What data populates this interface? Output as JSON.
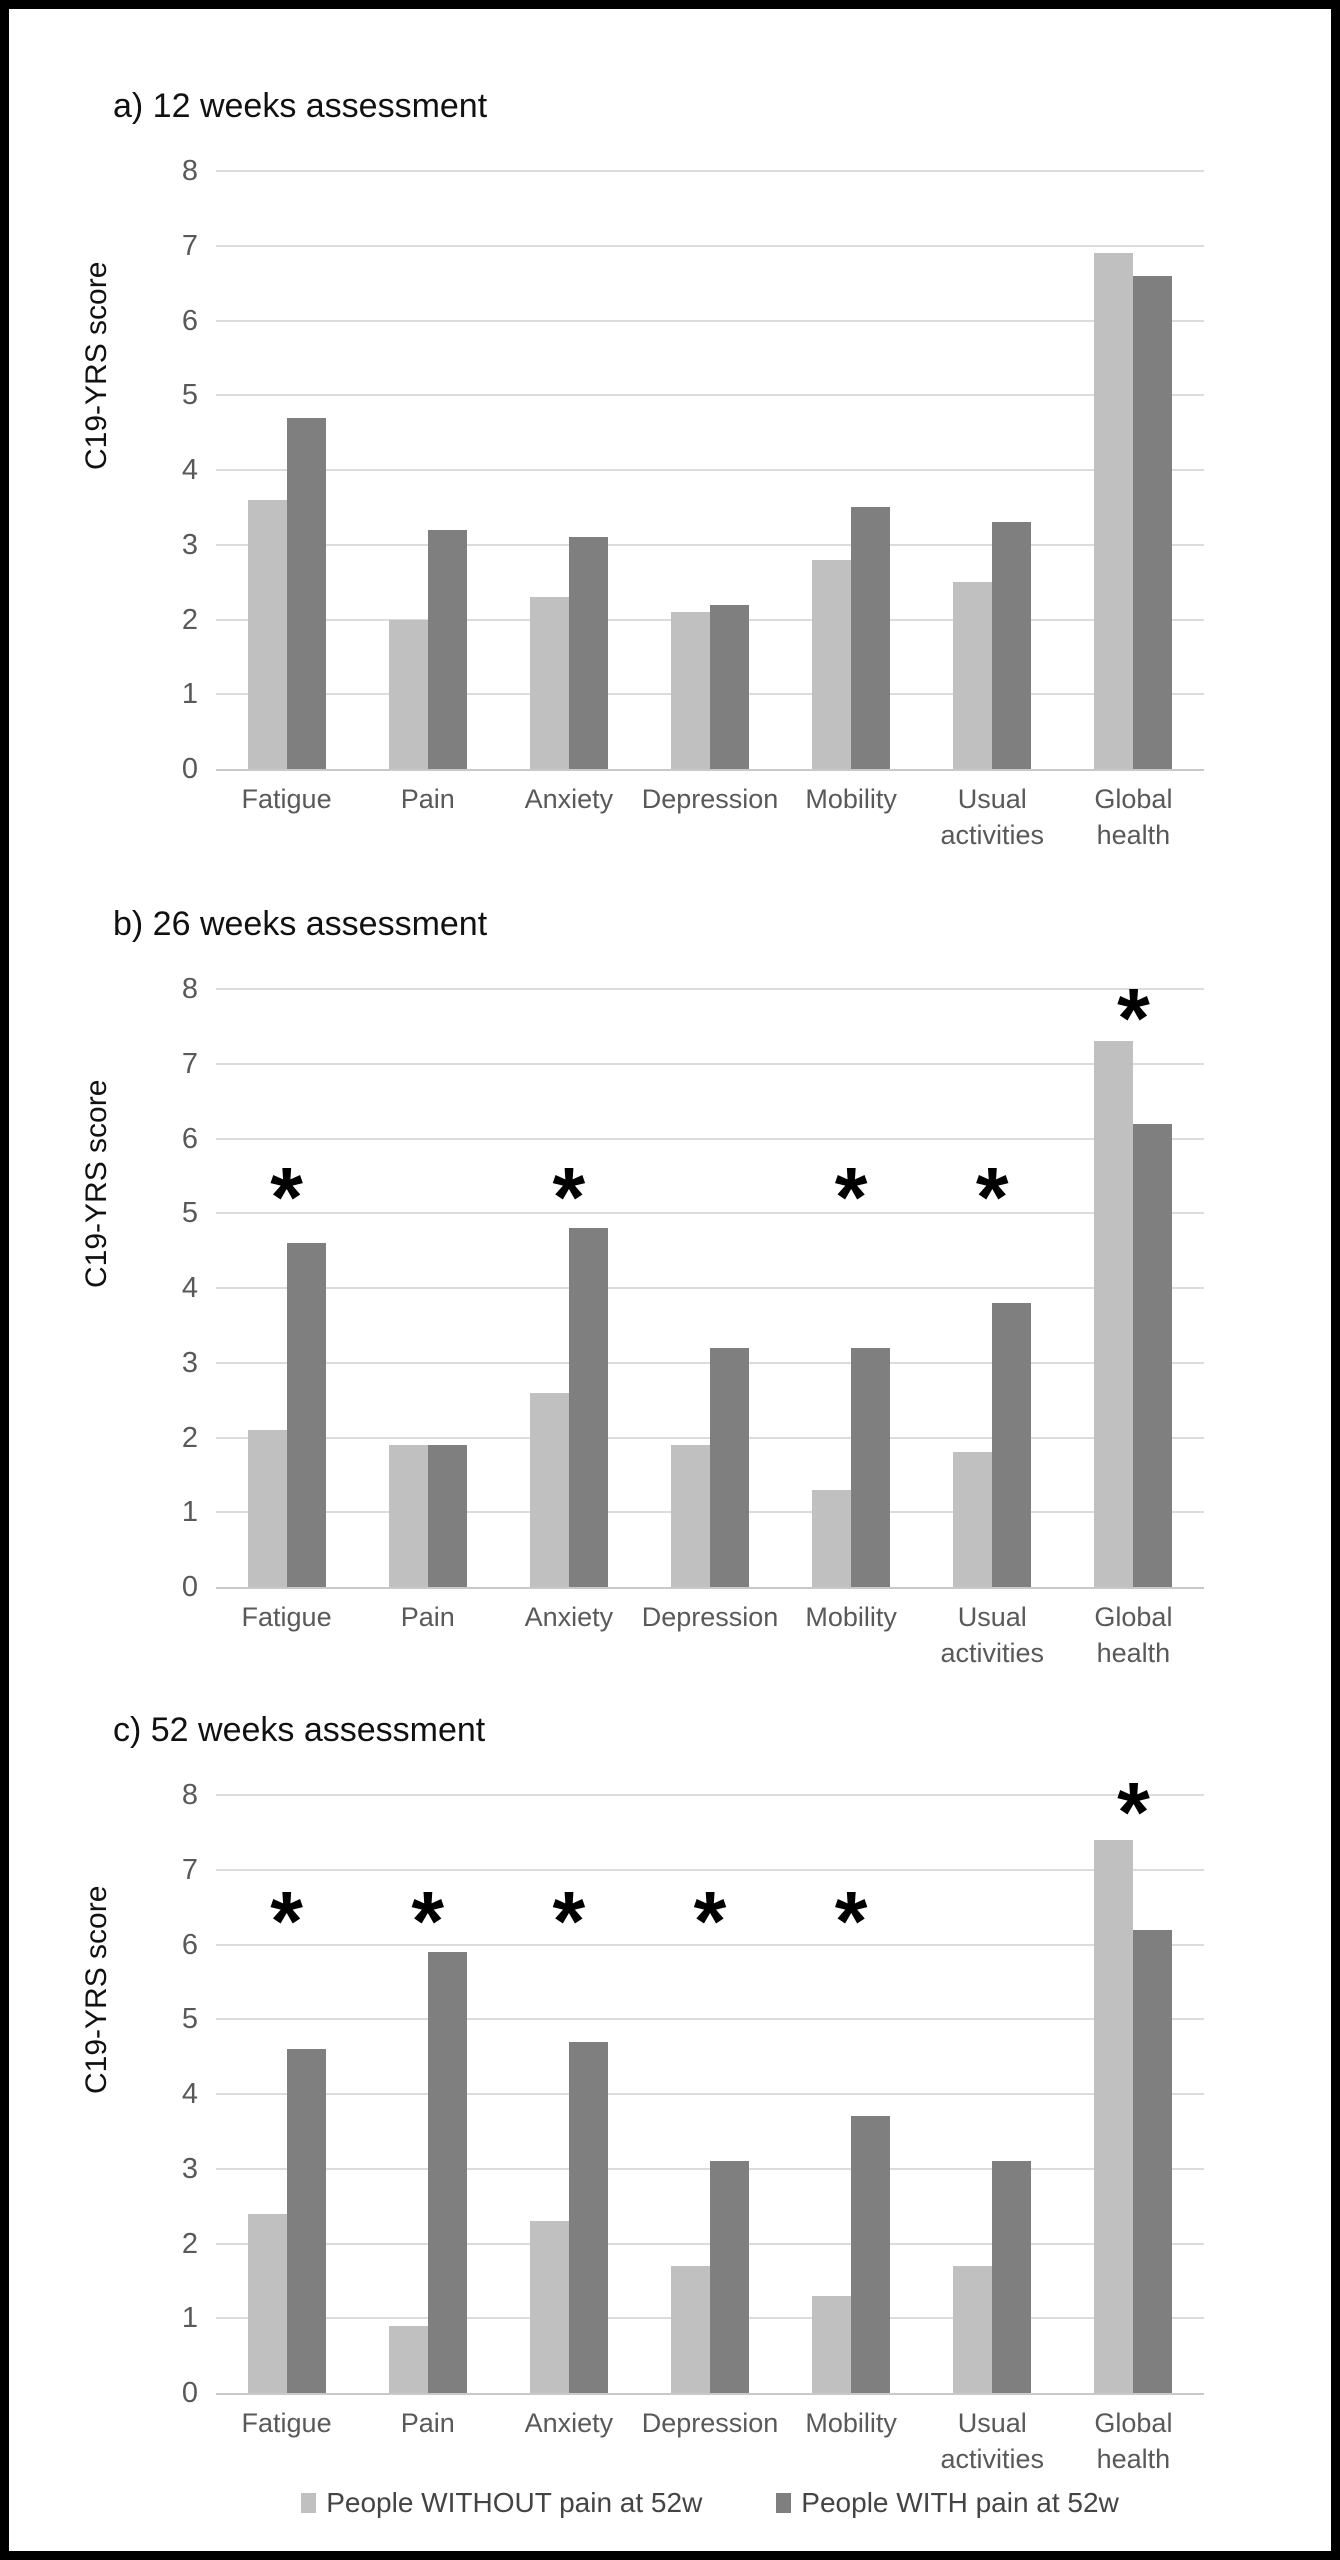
{
  "figure": {
    "sig_symbol": "*",
    "background": "#ffffff",
    "frame_color": "#000000",
    "gridline_color": "#dcdcdc"
  },
  "legend": {
    "items": [
      {
        "label": "People WITHOUT pain at 52w",
        "color": "#c0c0c0"
      },
      {
        "label": "People WITH pain at 52w",
        "color": "#7f7f7f"
      }
    ]
  },
  "chart_data": [
    {
      "type": "bar",
      "title": "a) 12 weeks assessment",
      "ylabel": "C19-YRS score",
      "xlabel": "",
      "ylim": [
        0,
        8
      ],
      "yticks": [
        0,
        1,
        2,
        3,
        4,
        5,
        6,
        7,
        8
      ],
      "grid": true,
      "legend_position": "shared-bottom",
      "categories": [
        "Fatigue",
        "Pain",
        "Anxiety",
        "Depression",
        "Mobility",
        "Usual\nactivities",
        "Global\nhealth"
      ],
      "series": [
        {
          "name": "People WITHOUT pain at 52w",
          "color": "#c0c0c0",
          "values": [
            3.6,
            2.0,
            2.3,
            2.1,
            2.8,
            2.5,
            6.9
          ]
        },
        {
          "name": "People WITH pain at 52w",
          "color": "#7f7f7f",
          "values": [
            4.7,
            3.2,
            3.1,
            2.2,
            3.5,
            3.3,
            6.6
          ]
        }
      ],
      "sig_markers": []
    },
    {
      "type": "bar",
      "title": "b) 26 weeks assessment",
      "ylabel": "C19-YRS score",
      "xlabel": "",
      "ylim": [
        0,
        8
      ],
      "yticks": [
        0,
        1,
        2,
        3,
        4,
        5,
        6,
        7,
        8
      ],
      "grid": true,
      "legend_position": "shared-bottom",
      "categories": [
        "Fatigue",
        "Pain",
        "Anxiety",
        "Depression",
        "Mobility",
        "Usual\nactivities",
        "Global\nhealth"
      ],
      "series": [
        {
          "name": "People WITHOUT pain at 52w",
          "color": "#c0c0c0",
          "values": [
            2.1,
            1.9,
            2.6,
            1.9,
            1.3,
            1.8,
            7.3
          ]
        },
        {
          "name": "People WITH pain at 52w",
          "color": "#7f7f7f",
          "values": [
            4.6,
            1.9,
            4.8,
            3.2,
            3.2,
            3.8,
            6.2
          ]
        }
      ],
      "sig_markers": [
        {
          "category": "Fatigue",
          "y": 5.35
        },
        {
          "category": "Anxiety",
          "y": 5.35
        },
        {
          "category": "Mobility",
          "y": 5.35
        },
        {
          "category": "Usual",
          "y": 5.35
        },
        {
          "category": "Global",
          "y": 7.75
        }
      ]
    },
    {
      "type": "bar",
      "title": "c) 52 weeks assessment",
      "ylabel": "C19-YRS score",
      "xlabel": "",
      "ylim": [
        0,
        8
      ],
      "yticks": [
        0,
        1,
        2,
        3,
        4,
        5,
        6,
        7,
        8
      ],
      "grid": true,
      "legend_position": "shared-bottom",
      "categories": [
        "Fatigue",
        "Pain",
        "Anxiety",
        "Depression",
        "Mobility",
        "Usual\nactivities",
        "Global\nhealth"
      ],
      "series": [
        {
          "name": "People WITHOUT pain at 52w",
          "color": "#c0c0c0",
          "values": [
            2.4,
            0.9,
            2.3,
            1.7,
            1.3,
            1.7,
            7.4
          ]
        },
        {
          "name": "People WITH pain at 52w",
          "color": "#7f7f7f",
          "values": [
            4.6,
            5.9,
            4.7,
            3.1,
            3.7,
            3.1,
            6.2
          ]
        }
      ],
      "sig_markers": [
        {
          "category": "Fatigue",
          "y": 6.45
        },
        {
          "category": "Pain",
          "y": 6.45
        },
        {
          "category": "Anxiety",
          "y": 6.45
        },
        {
          "category": "Depression",
          "y": 6.45
        },
        {
          "category": "Mobility",
          "y": 6.45
        },
        {
          "category": "Global",
          "y": 7.9
        }
      ]
    }
  ]
}
